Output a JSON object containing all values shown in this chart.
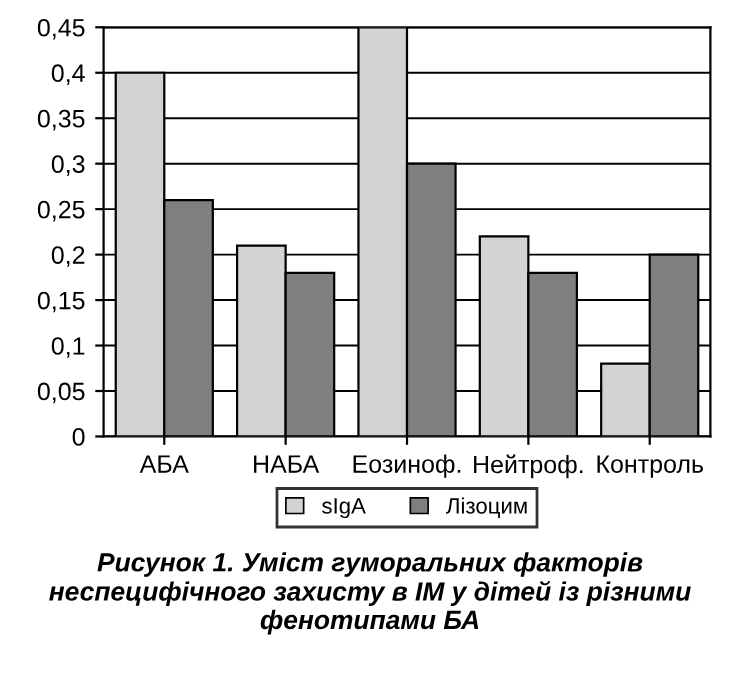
{
  "chart_data": {
    "type": "bar",
    "categories": [
      "АБА",
      "НАБА",
      "Еозиноф.",
      "Нейтроф.",
      "Контроль"
    ],
    "series": [
      {
        "name": "sIgA",
        "color": "#d3d3d3",
        "values": [
          0.4,
          0.21,
          0.45,
          0.22,
          0.08
        ]
      },
      {
        "name": "Лізоцим",
        "color": "#7f7f7f",
        "values": [
          0.26,
          0.18,
          0.3,
          0.18,
          0.2
        ]
      }
    ],
    "ylim": [
      0,
      0.45
    ],
    "yticks": [
      0,
      {
        "value": 0.05,
        "label": "0,05"
      },
      {
        "value": 0.1,
        "label": "0,1"
      },
      {
        "value": 0.15,
        "label": "0,15"
      },
      {
        "value": 0.2,
        "label": "0,2"
      },
      {
        "value": 0.25,
        "label": "0,25"
      },
      {
        "value": 0.3,
        "label": "0,3"
      },
      {
        "value": 0.35,
        "label": "0,35"
      },
      {
        "value": 0.4,
        "label": "0,4"
      },
      {
        "value": 0.45,
        "label": "0,45"
      }
    ],
    "grid": "y",
    "legend": "bottom",
    "annotations": [
      "Рисунок 1. Уміст гуморальних факторів неспецифічного захисту в ІМ у дітей із різними фенотипами БА"
    ]
  }
}
